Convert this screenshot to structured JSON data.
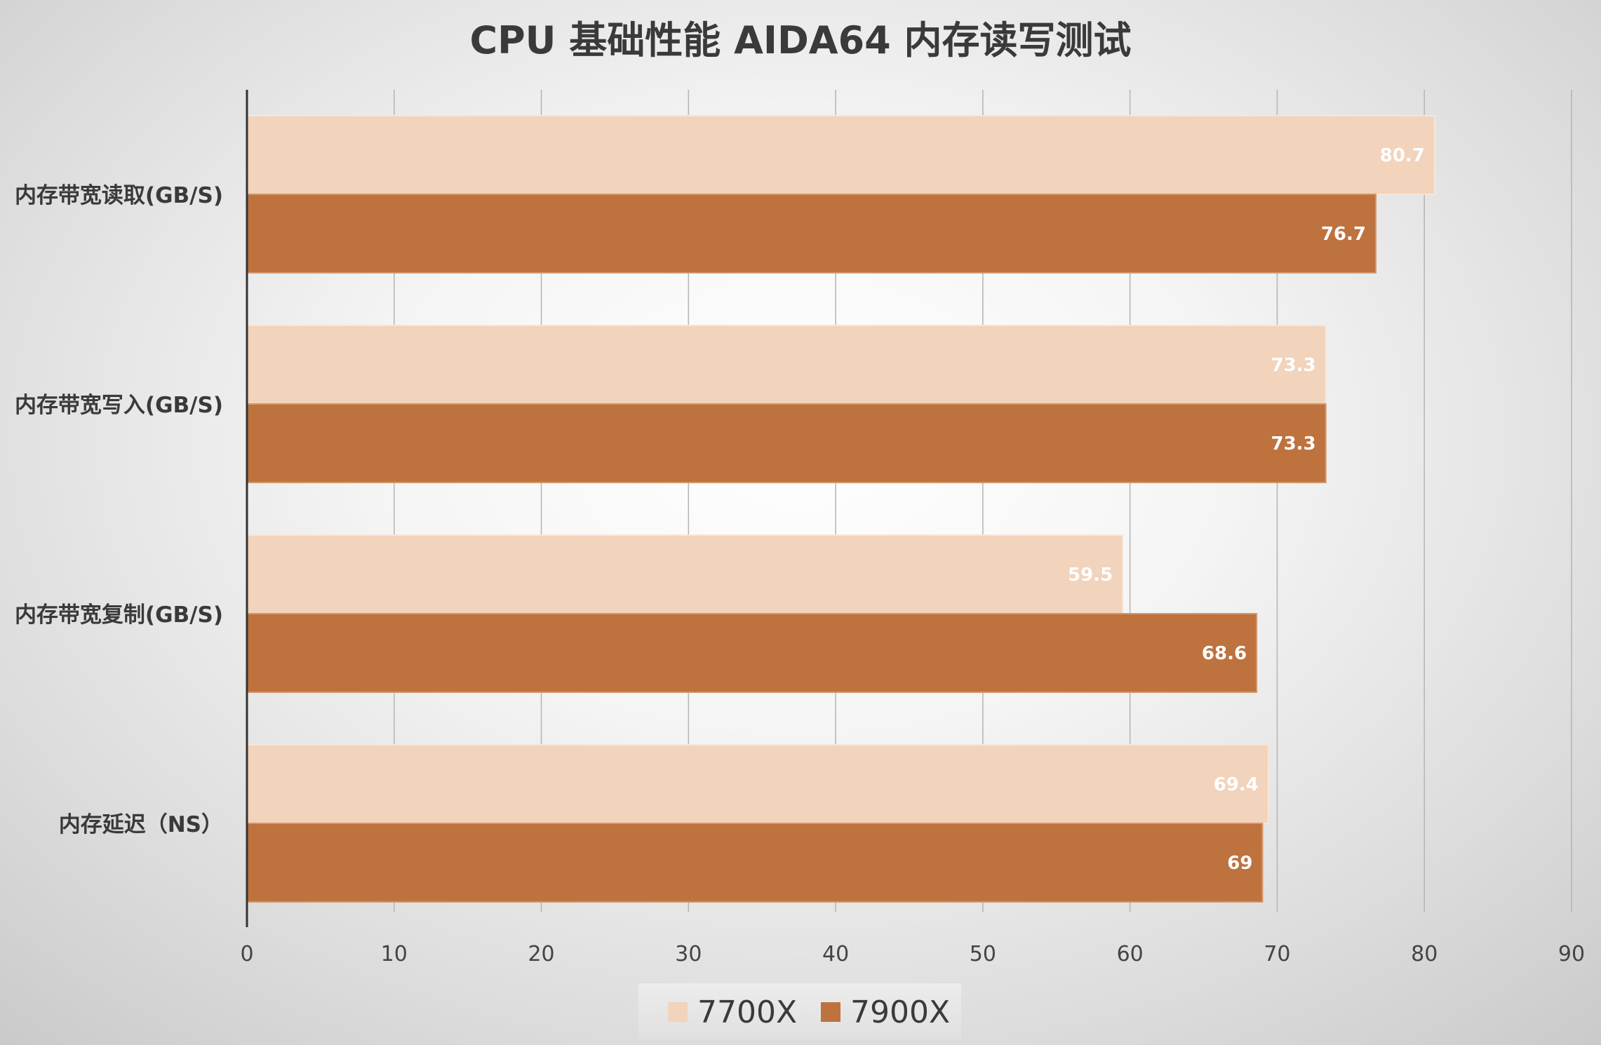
{
  "chart_data": {
    "type": "bar",
    "orientation": "horizontal",
    "title": "CPU 基础性能  AIDA64 内存读写测试",
    "categories": [
      "内存带宽读取(GB/S)",
      "内存带宽写入(GB/S)",
      "内存带宽复制(GB/S)",
      "内存延迟（NS）"
    ],
    "series": [
      {
        "name": "7700X",
        "values": [
          80.7,
          73.3,
          59.5,
          69.4
        ],
        "color": "#f2d3bb"
      },
      {
        "name": "7900X",
        "values": [
          76.7,
          73.3,
          68.6,
          69
        ],
        "color": "#be723e"
      }
    ],
    "value_labels": [
      [
        "80.7",
        "73.3",
        "59.5",
        "69.4"
      ],
      [
        "76.7",
        "73.3",
        "68.6",
        "69"
      ]
    ],
    "xlim": [
      0,
      90
    ],
    "xticks": [
      0,
      10,
      20,
      30,
      40,
      50,
      60,
      70,
      80,
      90
    ],
    "xtick_labels": [
      "0",
      "10",
      "20",
      "30",
      "40",
      "50",
      "60",
      "70",
      "80",
      "90"
    ],
    "grid": true,
    "legend_position": "bottom"
  }
}
